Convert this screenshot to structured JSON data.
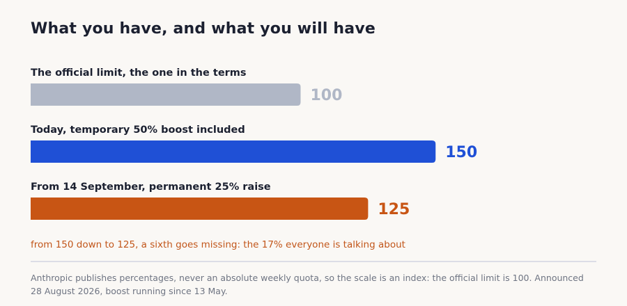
{
  "chart_data": {
    "type": "bar",
    "orientation": "horizontal",
    "title": "What you have, and what you will have",
    "categories": [
      "The official limit, the one in the terms",
      "Today, temporary 50% boost included",
      "From 14 September, permanent 25% raise"
    ],
    "values": [
      100,
      150,
      125
    ],
    "data_labels": [
      "100",
      "150",
      "125"
    ],
    "colors": [
      "#b0b7c6",
      "#1f50d6",
      "#c85514"
    ],
    "xlim": [
      0,
      180
    ],
    "grid": false,
    "annotation": "from 150 down to 125, a sixth goes missing: the 17% everyone is talking about",
    "footnote": "Anthropic publishes percentages, never an absolute weekly quota, so the scale is an index: the official limit is 100. Announced 28 August 2026, boost running since 13 May."
  }
}
